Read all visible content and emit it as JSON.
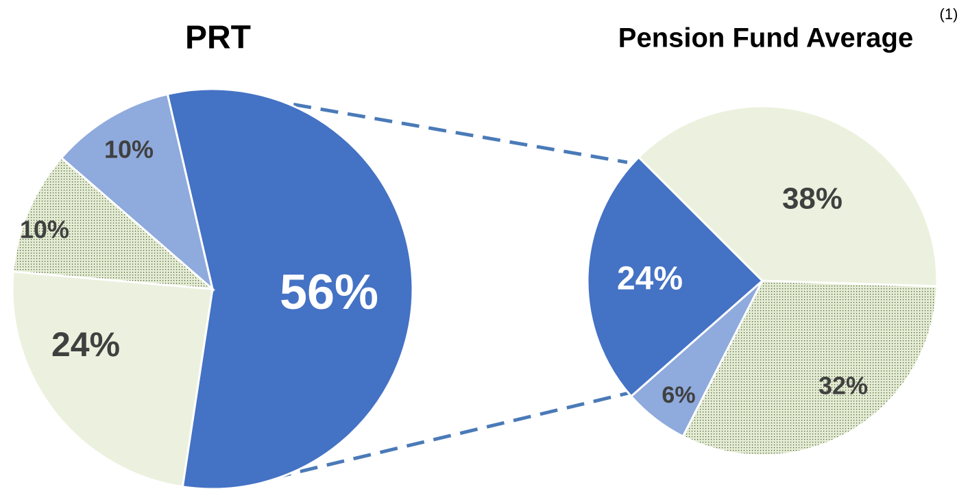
{
  "chart_data": [
    {
      "type": "pie",
      "title": "PRT",
      "values": [
        56,
        24,
        10,
        10
      ],
      "value_labels": [
        "56%",
        "24%",
        "10%",
        "10%"
      ],
      "colors": [
        "#4472c4",
        "#ebf1de",
        "#d8e4bc",
        "#8faadc"
      ],
      "pattern": [
        "solid",
        "solid",
        "dots",
        "solid"
      ],
      "label_colors": [
        "#ffffff",
        "#404040",
        "#404040",
        "#404040"
      ]
    },
    {
      "type": "pie",
      "title": "Pension Fund Average",
      "title_note": "(1)",
      "values": [
        38,
        32,
        6,
        24
      ],
      "value_labels": [
        "38%",
        "32%",
        "6%",
        "24%"
      ],
      "colors": [
        "#ebf1de",
        "#d8e4bc",
        "#8faadc",
        "#4472c4"
      ],
      "pattern": [
        "solid",
        "dots",
        "solid",
        "solid"
      ],
      "label_colors": [
        "#404040",
        "#404040",
        "#404040",
        "#ffffff"
      ]
    }
  ]
}
